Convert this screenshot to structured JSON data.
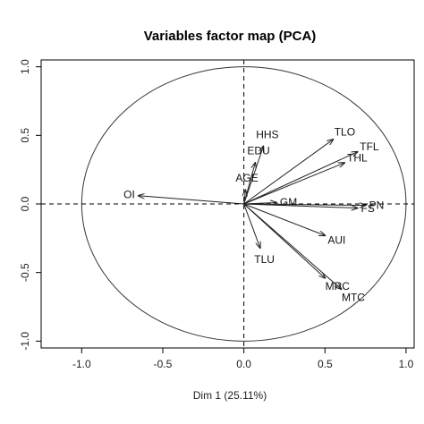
{
  "chart_data": {
    "type": "scatter",
    "title": "Variables factor map (PCA)",
    "xlabel": "Dim 1 (25.11%)",
    "ylabel": "",
    "xlim": [
      -1.25,
      1.05
    ],
    "ylim": [
      -1.05,
      1.05
    ],
    "xticks": [
      -1.0,
      -0.5,
      0.0,
      0.5,
      1.0
    ],
    "yticks": [
      -1.0,
      -0.5,
      0.0,
      0.5,
      1.0
    ],
    "xtick_labels": [
      "-1.0",
      "-0.5",
      "0.0",
      "0.5",
      "1.0"
    ],
    "ytick_labels": [
      "-1.0",
      "-0.5",
      "0.0",
      "0.5",
      "1.0"
    ],
    "correlation_circle": true,
    "variables": [
      {
        "name": "TLO",
        "x": 0.55,
        "y": 0.47
      },
      {
        "name": "TFL",
        "x": 0.7,
        "y": 0.38
      },
      {
        "name": "THL",
        "x": 0.62,
        "y": 0.3
      },
      {
        "name": "HHS",
        "x": 0.12,
        "y": 0.42
      },
      {
        "name": "EDU",
        "x": 0.07,
        "y": 0.3
      },
      {
        "name": "AGE",
        "x": 0.01,
        "y": 0.1
      },
      {
        "name": "OI",
        "x": -0.65,
        "y": 0.06
      },
      {
        "name": "GM",
        "x": 0.2,
        "y": 0.01
      },
      {
        "name": "PN",
        "x": 0.75,
        "y": -0.01
      },
      {
        "name": "FS",
        "x": 0.7,
        "y": -0.03
      },
      {
        "name": "AUI",
        "x": 0.5,
        "y": -0.23
      },
      {
        "name": "TLU",
        "x": 0.1,
        "y": -0.32
      },
      {
        "name": "MRC",
        "x": 0.5,
        "y": -0.54
      },
      {
        "name": "MTC",
        "x": 0.6,
        "y": -0.62
      }
    ]
  }
}
